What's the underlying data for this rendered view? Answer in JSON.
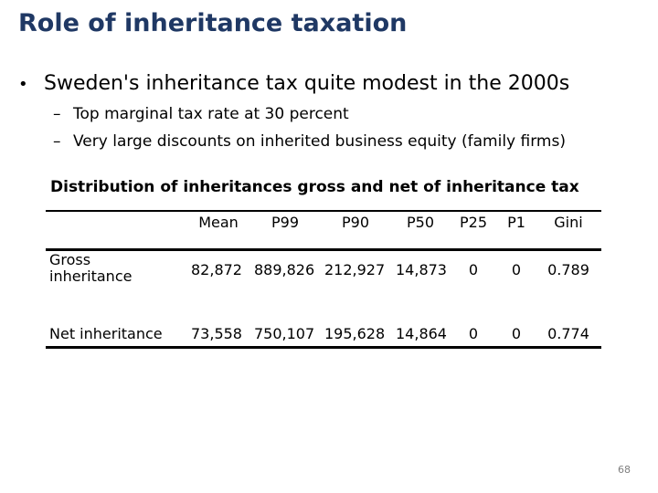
{
  "slide": {
    "title": "Role of inheritance taxation",
    "bullet": "Sweden's inheritance tax quite modest in the 2000s",
    "bullet_marker": "•",
    "sub_bullet_marker": "–",
    "sub_bullets": [
      "Top marginal tax rate at 30 percent",
      "Very large discounts on inherited business equity (family firms)"
    ],
    "page_number": "68"
  },
  "table": {
    "caption": "Distribution of inheritances gross and net of inheritance tax",
    "headers": [
      "Mean",
      "P99",
      "P90",
      "P50",
      "P25",
      "P1",
      "Gini"
    ],
    "rows": [
      {
        "label": "Gross inheritance",
        "values": [
          "82,872",
          "889,826",
          "212,927",
          "14,873",
          "0",
          "0",
          "0.789"
        ]
      },
      {
        "label": "Net inheritance",
        "values": [
          "73,558",
          "750,107",
          "195,628",
          "14,864",
          "0",
          "0",
          "0.774"
        ]
      }
    ]
  }
}
